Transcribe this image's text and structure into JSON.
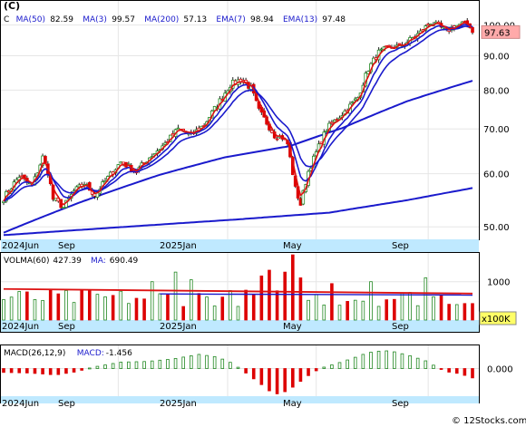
{
  "chart_data": [
    {
      "id": "price",
      "type": "candlestick",
      "symbol": "(C)",
      "legend": [
        {
          "label": "C",
          "value": "",
          "color": "#000000"
        },
        {
          "label": "MA(50)",
          "value": "82.59",
          "color": "#0000cc"
        },
        {
          "label": "MA(3)",
          "value": "99.57",
          "color": "#0000cc"
        },
        {
          "label": "MA(200)",
          "value": "57.13",
          "color": "#0000cc"
        },
        {
          "label": "EMA(7)",
          "value": "98.94",
          "color": "#0000cc"
        },
        {
          "label": "EMA(13)",
          "value": "97.48",
          "color": "#0000cc"
        }
      ],
      "y_axis": {
        "scale": "log",
        "ticks": [
          "100.00",
          "90.00",
          "80.00",
          "70.00",
          "60.00",
          "50.00"
        ],
        "tick_values": [
          100,
          90,
          80,
          70,
          60,
          50
        ],
        "range": [
          48.2,
          105
        ]
      },
      "last_price": {
        "label": "97.63",
        "value": 97.63,
        "box_color": "#ffaaaa"
      },
      "x_labels": [
        "2024Jun",
        "Sep",
        "2025Jan",
        "May",
        "Sep"
      ],
      "ohlc_anchors": [
        [
          0,
          55.2
        ],
        [
          6,
          59.5
        ],
        [
          11,
          57.5
        ],
        [
          15,
          63.5
        ],
        [
          17,
          60.5
        ],
        [
          19,
          55.0
        ],
        [
          23,
          53.5
        ],
        [
          27,
          56.5
        ],
        [
          31,
          58.0
        ],
        [
          35,
          55.8
        ],
        [
          39,
          58.5
        ],
        [
          45,
          62.5
        ],
        [
          51,
          60.5
        ],
        [
          56,
          63.5
        ],
        [
          62,
          66.5
        ],
        [
          67,
          70.0
        ],
        [
          72,
          68.5
        ],
        [
          77,
          71.0
        ],
        [
          82,
          76.0
        ],
        [
          87,
          81.5
        ],
        [
          91,
          83.0
        ],
        [
          95,
          80.5
        ],
        [
          98,
          74.5
        ],
        [
          101,
          71.5
        ],
        [
          104,
          68.5
        ],
        [
          107,
          68.0
        ],
        [
          109,
          66.5
        ],
        [
          112,
          57.0
        ],
        [
          114,
          54.0
        ],
        [
          117,
          60.5
        ],
        [
          120,
          64.5
        ],
        [
          124,
          70.0
        ],
        [
          128,
          72.5
        ],
        [
          132,
          75.0
        ],
        [
          136,
          78.0
        ],
        [
          140,
          86.0
        ],
        [
          144,
          91.0
        ],
        [
          148,
          92.5
        ],
        [
          152,
          93.0
        ],
        [
          156,
          95.0
        ],
        [
          160,
          97.5
        ],
        [
          164,
          101.0
        ],
        [
          167,
          99.5
        ],
        [
          170,
          98.0
        ],
        [
          173,
          99.5
        ],
        [
          176,
          100.5
        ],
        [
          179,
          99.8
        ],
        [
          180,
          97.63
        ]
      ],
      "ma_lines": {
        "MA200": [
          [
            0,
            48.6
          ],
          [
            40,
            49.8
          ],
          [
            90,
            51.3
          ],
          [
            125,
            52.5
          ],
          [
            155,
            54.8
          ],
          [
            180,
            57.13
          ]
        ],
        "MA50": [
          [
            0,
            49.0
          ],
          [
            30,
            54.5
          ],
          [
            60,
            59.8
          ],
          [
            85,
            63.5
          ],
          [
            110,
            66.0
          ],
          [
            130,
            70.2
          ],
          [
            155,
            77.0
          ],
          [
            180,
            82.59
          ]
        ]
      }
    },
    {
      "id": "volume",
      "type": "bar",
      "legend": [
        {
          "label": "VOLMA(60)",
          "value": "427.39",
          "color": "#000000"
        },
        {
          "label": "MA:",
          "value": "690.49",
          "color": "#0000cc"
        }
      ],
      "y_axis": {
        "ticks": [
          "1000"
        ],
        "tick_values": [
          1000
        ],
        "range": [
          0,
          1750
        ]
      },
      "unit_badge": "x100K",
      "ma_value": 690.49,
      "x_labels": [
        "2024Jun",
        "Sep",
        "2025Jan",
        "May",
        "Sep"
      ]
    },
    {
      "id": "macd",
      "type": "bar",
      "legend": [
        {
          "label": "MACD(26,12,9)",
          "value": "",
          "color": "#000000"
        },
        {
          "label": "MACD:",
          "value": "-1.456",
          "color": "#0000cc"
        }
      ],
      "y_axis": {
        "ticks": [
          "0.000"
        ],
        "tick_values": [
          0
        ],
        "range": [
          -4.3,
          3.6
        ]
      },
      "anchors": [
        [
          0,
          -0.6
        ],
        [
          10,
          -0.7
        ],
        [
          20,
          -1.0
        ],
        [
          28,
          -0.5
        ],
        [
          34,
          0.2
        ],
        [
          45,
          1.0
        ],
        [
          55,
          1.1
        ],
        [
          65,
          1.5
        ],
        [
          75,
          2.2
        ],
        [
          82,
          1.8
        ],
        [
          88,
          0.8
        ],
        [
          92,
          -0.4
        ],
        [
          96,
          -1.6
        ],
        [
          100,
          -2.8
        ],
        [
          103,
          -3.8
        ],
        [
          106,
          -4.0
        ],
        [
          110,
          -3.2
        ],
        [
          114,
          -2.0
        ],
        [
          118,
          -0.8
        ],
        [
          122,
          0.1
        ],
        [
          128,
          0.8
        ],
        [
          134,
          1.6
        ],
        [
          140,
          2.5
        ],
        [
          146,
          2.8
        ],
        [
          150,
          2.6
        ],
        [
          156,
          2.0
        ],
        [
          162,
          1.2
        ],
        [
          166,
          0.3
        ],
        [
          170,
          -0.5
        ],
        [
          175,
          -0.8
        ],
        [
          180,
          -1.456
        ]
      ],
      "x_labels": [
        "2024Jun",
        "Sep",
        "2025Jan",
        "May",
        "Sep"
      ]
    }
  ],
  "watermark": "© 12Stocks.com"
}
